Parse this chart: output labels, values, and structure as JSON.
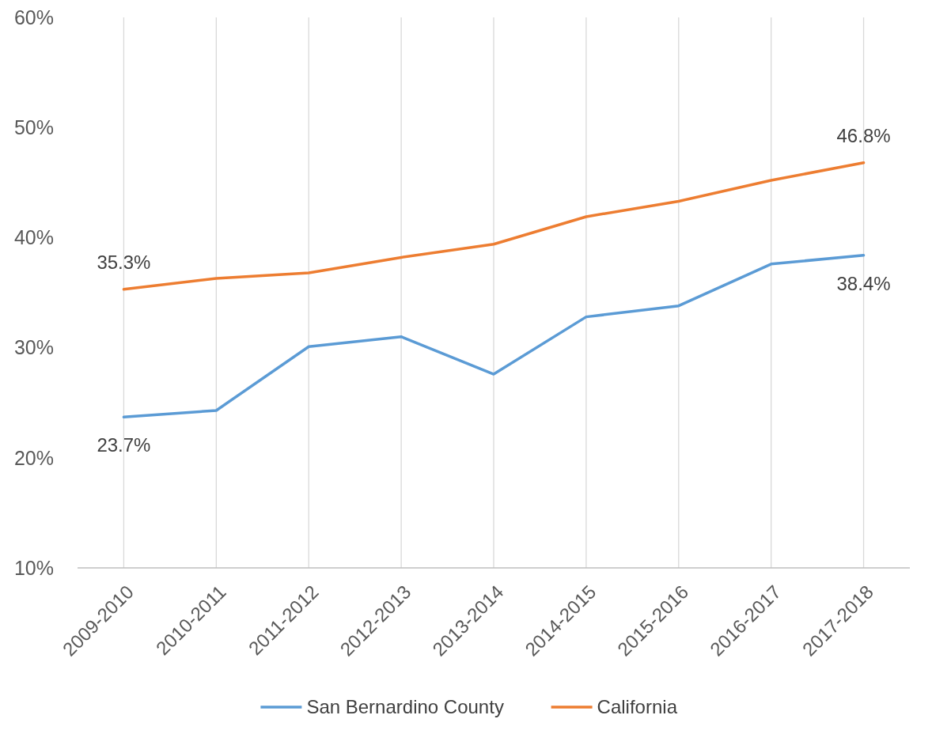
{
  "chart_data": {
    "type": "line",
    "categories": [
      "2009-2010",
      "2010-2011",
      "2011-2012",
      "2012-2013",
      "2013-2014",
      "2014-2015",
      "2015-2016",
      "2016-2017",
      "2017-2018"
    ],
    "series": [
      {
        "name": "San Bernardino County",
        "color": "#5b9bd5",
        "values": [
          23.7,
          24.3,
          30.1,
          31.0,
          27.6,
          32.8,
          33.8,
          37.6,
          38.4
        ],
        "value_labels": [
          "23.7%",
          null,
          null,
          null,
          null,
          null,
          null,
          null,
          "38.4%"
        ]
      },
      {
        "name": "California",
        "color": "#ed7d31",
        "values": [
          35.3,
          36.3,
          36.8,
          38.2,
          39.4,
          41.9,
          43.3,
          45.2,
          46.8
        ],
        "value_labels": [
          "35.3%",
          null,
          null,
          null,
          null,
          null,
          null,
          null,
          "46.8%"
        ]
      }
    ],
    "ylim": [
      10,
      60
    ],
    "yticks": [
      {
        "value": 10,
        "label": "10%"
      },
      {
        "value": 20,
        "label": "20%"
      },
      {
        "value": 30,
        "label": "30%"
      },
      {
        "value": 40,
        "label": "40%"
      },
      {
        "value": 50,
        "label": "50%"
      },
      {
        "value": 60,
        "label": "60%"
      }
    ],
    "grid": "x",
    "legend": "bottom",
    "marker": "none",
    "line_style": "solid"
  }
}
